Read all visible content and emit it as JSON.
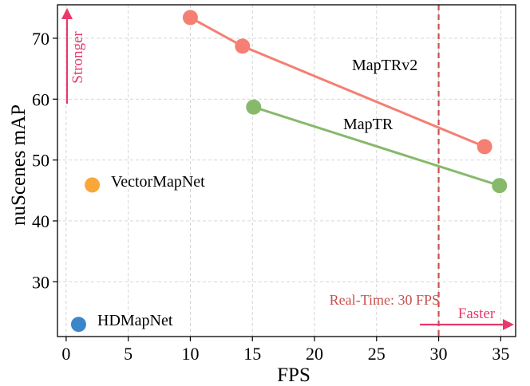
{
  "chart_data": {
    "type": "scatter",
    "title": "",
    "xlabel": "FPS",
    "ylabel": "nuScenes mAP",
    "xlim": [
      -0.7,
      36.2
    ],
    "ylim": [
      21,
      75.5
    ],
    "xticks": [
      0,
      5,
      10,
      15,
      20,
      25,
      30,
      35
    ],
    "yticks": [
      30,
      40,
      50,
      60,
      70
    ],
    "grid": true,
    "series": [
      {
        "name": "MapTRv2",
        "color": "#f47f72",
        "connected": true,
        "x": [
          10.0,
          14.2,
          33.7
        ],
        "y": [
          73.4,
          68.7,
          52.2
        ]
      },
      {
        "name": "MapTR",
        "color": "#87b96b",
        "connected": true,
        "x": [
          15.1,
          34.9
        ],
        "y": [
          58.7,
          45.8
        ]
      },
      {
        "name": "VectorMapNet",
        "color": "#f9a73a",
        "connected": false,
        "x": [
          2.1
        ],
        "y": [
          45.9
        ]
      },
      {
        "name": "HDMapNet",
        "color": "#3a86c8",
        "connected": false,
        "x": [
          1.0
        ],
        "y": [
          23.0
        ]
      }
    ],
    "annotations": {
      "maptrv2_label": "MapTRv2",
      "maptr_label": "MapTR",
      "vectormapnet_label": "VectorMapNet",
      "hdmapnet_label": "HDMapNet",
      "realtime_label": "Real-Time: 30 FPS",
      "realtime_x": 30,
      "realtime_color": "#c9524f",
      "faster_label": "Faster",
      "stronger_label": "Stronger",
      "arrow_color": "#e8396a"
    }
  }
}
